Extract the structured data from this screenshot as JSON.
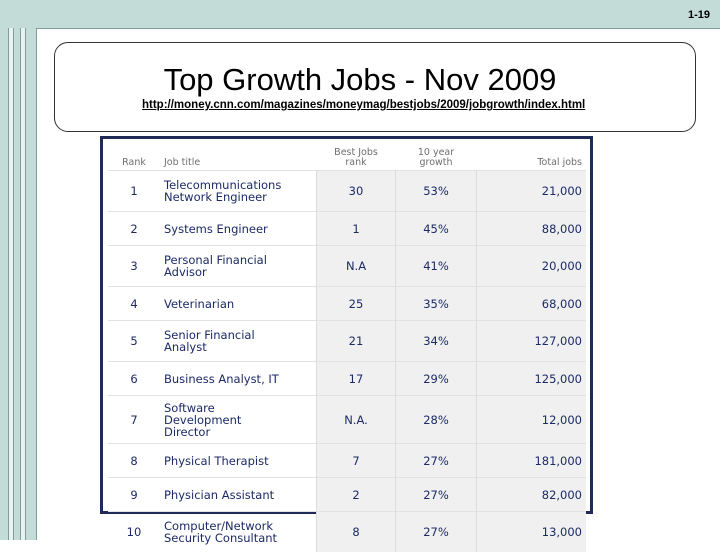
{
  "page_number": "1-19",
  "title": "Top Growth Jobs -  Nov 2009",
  "url": "http://money.cnn.com/magazines/moneymag/bestjobs/2009/jobgrowth/index.html",
  "table": {
    "headers": {
      "rank": "Rank",
      "job_title": "Job title",
      "best_jobs_rank": "Best Jobs\nrank",
      "growth": "10 year\ngrowth",
      "total_jobs": "Total jobs"
    },
    "rows": [
      {
        "rank": "1",
        "job_title": "Telecommunications\nNetwork Engineer",
        "best_jobs_rank": "30",
        "growth": "53%",
        "total_jobs": "21,000"
      },
      {
        "rank": "2",
        "job_title": "Systems Engineer",
        "best_jobs_rank": "1",
        "growth": "45%",
        "total_jobs": "88,000"
      },
      {
        "rank": "3",
        "job_title": "Personal Financial\nAdvisor",
        "best_jobs_rank": "N.A",
        "growth": "41%",
        "total_jobs": "20,000"
      },
      {
        "rank": "4",
        "job_title": "Veterinarian",
        "best_jobs_rank": "25",
        "growth": "35%",
        "total_jobs": "68,000"
      },
      {
        "rank": "5",
        "job_title": "Senior Financial\nAnalyst",
        "best_jobs_rank": "21",
        "growth": "34%",
        "total_jobs": "127,000"
      },
      {
        "rank": "6",
        "job_title": "Business Analyst, IT",
        "best_jobs_rank": "17",
        "growth": "29%",
        "total_jobs": "125,000"
      },
      {
        "rank": "7",
        "job_title": "Software\nDevelopment\nDirector",
        "best_jobs_rank": "N.A.",
        "growth": "28%",
        "total_jobs": "12,000"
      },
      {
        "rank": "8",
        "job_title": "Physical Therapist",
        "best_jobs_rank": "7",
        "growth": "27%",
        "total_jobs": "181,000"
      },
      {
        "rank": "9",
        "job_title": "Physician Assistant",
        "best_jobs_rank": "2",
        "growth": "27%",
        "total_jobs": "82,000"
      },
      {
        "rank": "10",
        "job_title": "Computer/Network\nSecurity Consultant",
        "best_jobs_rank": "8",
        "growth": "27%",
        "total_jobs": "13,000"
      }
    ]
  }
}
